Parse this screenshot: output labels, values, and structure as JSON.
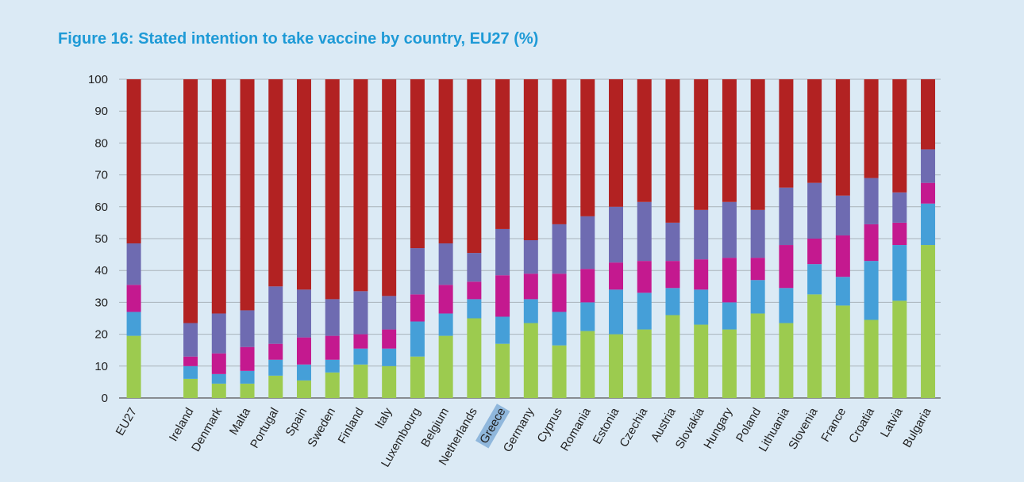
{
  "chart_data": {
    "type": "bar",
    "stacked": true,
    "title": "Figure 16: Stated intention to take vaccine by country, EU27 (%)",
    "xlabel": "",
    "ylabel": "",
    "ylim": [
      0,
      100
    ],
    "yticks": [
      0,
      10,
      20,
      30,
      40,
      50,
      60,
      70,
      80,
      90,
      100
    ],
    "grid": true,
    "categories": [
      "EU27",
      "Ireland",
      "Denmark",
      "Malta",
      "Portugal",
      "Spain",
      "Sweden",
      "Finland",
      "Italy",
      "Luxembourg",
      "Belgium",
      "Netherlands",
      "Greece",
      "Germany",
      "Cyprus",
      "Romania",
      "Estonia",
      "Czechia",
      "Austria",
      "Slovakia",
      "Hungary",
      "Poland",
      "Lithuania",
      "Slovenia",
      "France",
      "Croatia",
      "Latvia",
      "Bulgaria"
    ],
    "series": [
      {
        "color": "#9ccb4f",
        "values": [
          19.5,
          6,
          4.5,
          4.5,
          7,
          5.5,
          8,
          10.5,
          10,
          13,
          19.5,
          25,
          17,
          23.5,
          16.5,
          21,
          20,
          21.5,
          26,
          23,
          21.5,
          26.5,
          23.5,
          32.5,
          29,
          24.5,
          30.5,
          48
        ]
      },
      {
        "color": "#459fd8",
        "values": [
          7.5,
          4,
          3,
          4,
          5,
          5,
          4,
          5,
          5.5,
          11,
          7,
          6,
          8.5,
          7.5,
          10.5,
          9,
          14,
          11.5,
          8.5,
          11,
          8.5,
          10.5,
          11,
          9.5,
          9,
          18.5,
          17.5,
          13
        ]
      },
      {
        "color": "#c4198f",
        "values": [
          8.5,
          3,
          6.5,
          7.5,
          5,
          8.5,
          7.5,
          4.5,
          6,
          8.5,
          9,
          5.5,
          13,
          8,
          12,
          10.5,
          8.5,
          10,
          8.5,
          9.5,
          14,
          7,
          13.5,
          8,
          13,
          11.5,
          7,
          6.5
        ]
      },
      {
        "color": "#6e6bb1",
        "values": [
          13,
          10.5,
          12.5,
          11.5,
          18,
          15,
          11.5,
          13.5,
          10.5,
          14.5,
          13,
          9,
          14.5,
          10.5,
          15.5,
          16.5,
          17.5,
          18.5,
          12,
          15.5,
          17.5,
          15,
          18,
          17.5,
          12.5,
          14.5,
          9.5,
          10.5
        ]
      },
      {
        "color": "#b22222",
        "values": [
          51.5,
          76.5,
          73.5,
          72.5,
          65,
          66,
          69,
          66.5,
          68,
          53,
          51.5,
          54.5,
          47,
          50.5,
          45.5,
          43,
          40,
          38.5,
          45,
          41,
          38.5,
          41,
          34,
          32.5,
          36.5,
          31,
          35.5,
          22
        ]
      }
    ],
    "highlighted_category": "Greece"
  }
}
